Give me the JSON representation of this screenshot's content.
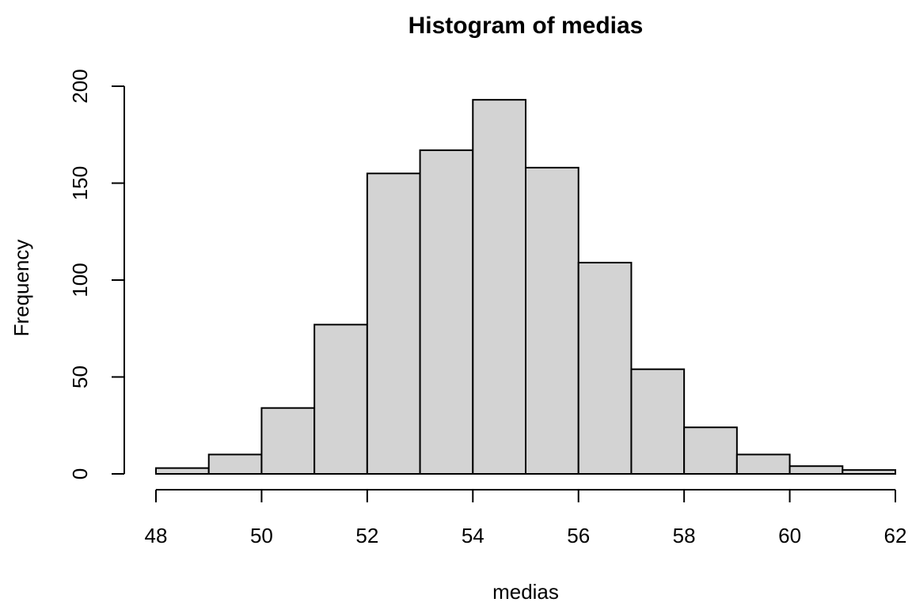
{
  "chart_data": {
    "type": "bar",
    "title": "Histogram of medias",
    "xlabel": "medias",
    "ylabel": "Frequency",
    "bins": [
      {
        "start": 48,
        "end": 49,
        "count": 3
      },
      {
        "start": 49,
        "end": 50,
        "count": 10
      },
      {
        "start": 50,
        "end": 51,
        "count": 34
      },
      {
        "start": 51,
        "end": 52,
        "count": 77
      },
      {
        "start": 52,
        "end": 53,
        "count": 155
      },
      {
        "start": 53,
        "end": 54,
        "count": 167
      },
      {
        "start": 54,
        "end": 55,
        "count": 193
      },
      {
        "start": 55,
        "end": 56,
        "count": 158
      },
      {
        "start": 56,
        "end": 57,
        "count": 109
      },
      {
        "start": 57,
        "end": 58,
        "count": 54
      },
      {
        "start": 58,
        "end": 59,
        "count": 24
      },
      {
        "start": 59,
        "end": 60,
        "count": 10
      },
      {
        "start": 60,
        "end": 61,
        "count": 4
      },
      {
        "start": 61,
        "end": 62,
        "count": 2
      }
    ],
    "xlim": [
      48,
      62
    ],
    "ylim": [
      0,
      200
    ],
    "x_ticks": [
      48,
      50,
      52,
      54,
      56,
      58,
      60,
      62
    ],
    "y_ticks": [
      0,
      50,
      100,
      150,
      200
    ],
    "grid": false,
    "bar_color": "#d3d3d3"
  }
}
